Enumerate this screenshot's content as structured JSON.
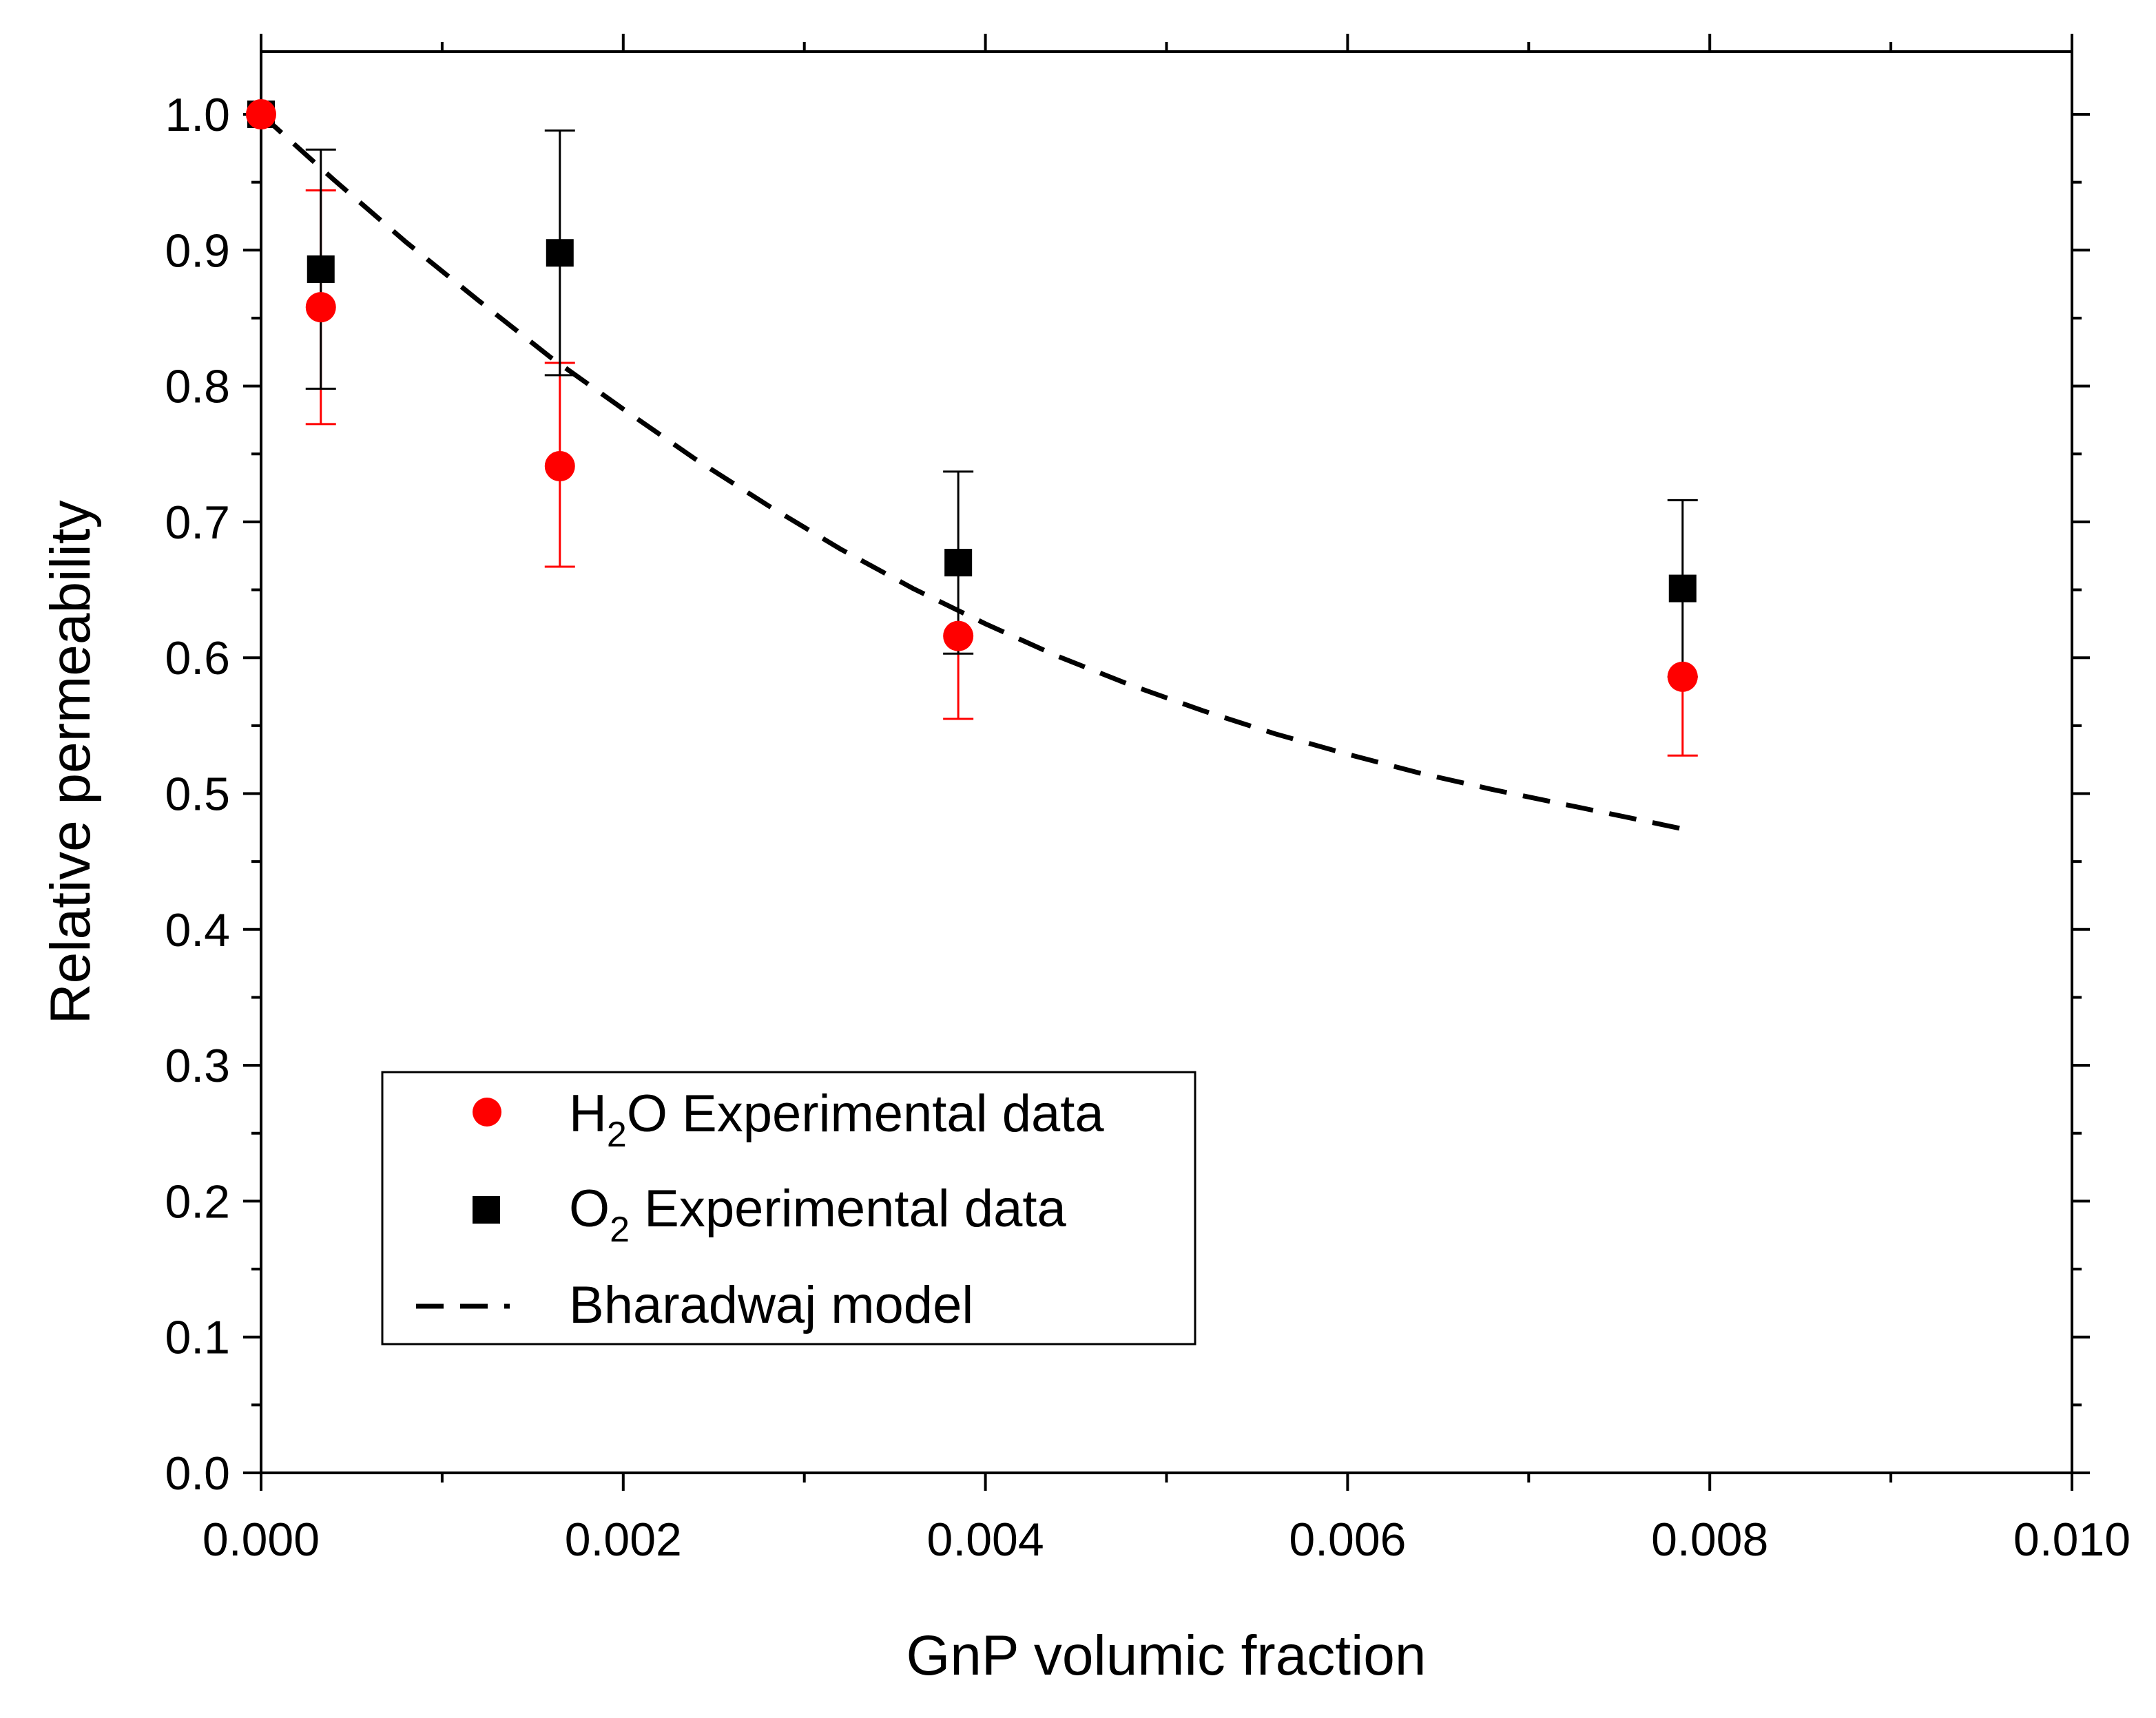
{
  "chart_data": {
    "type": "scatter",
    "title": "",
    "xlabel": "GnP volumic fraction",
    "ylabel": "Relative permeability",
    "xlim": [
      0,
      0.01
    ],
    "ylim": [
      0,
      1.05
    ],
    "grid": false,
    "x_ticks": [
      "0.000",
      "0.002",
      "0.004",
      "0.006",
      "0.008",
      "0.010"
    ],
    "y_ticks": [
      "0.0",
      "0.1",
      "0.2",
      "0.3",
      "0.4",
      "0.5",
      "0.6",
      "0.7",
      "0.8",
      "0.9",
      "1.0"
    ],
    "legend_position": "bottom-left",
    "series": [
      {
        "name": "H2O Experimental data",
        "legend": {
          "pre": "H",
          "sub": "2",
          "post": "O Experimental data"
        },
        "marker": "circle",
        "color": "#ff0000",
        "x": [
          0.0,
          0.00033,
          0.00165,
          0.00385,
          0.00785
        ],
        "y": [
          1.0,
          0.858,
          0.741,
          0.616,
          0.586
        ],
        "err_low": [
          0.0,
          0.086,
          0.074,
          0.061,
          0.058
        ],
        "err_high": [
          0.0,
          0.086,
          0.076,
          0.0,
          0.0
        ]
      },
      {
        "name": "O2 Experimental data",
        "legend": {
          "pre": "O",
          "sub": "2",
          "post": " Experimental data"
        },
        "marker": "square",
        "color": "#000000",
        "x": [
          0.0,
          0.00033,
          0.00165,
          0.00385,
          0.00785
        ],
        "y": [
          1.0,
          0.886,
          0.898,
          0.67,
          0.651
        ],
        "err_low": [
          0.0,
          0.088,
          0.09,
          0.067,
          0.065
        ],
        "err_high": [
          0.0,
          0.088,
          0.09,
          0.067,
          0.065
        ]
      },
      {
        "name": "Bharadwaj model",
        "legend": {
          "pre": "Bharadwaj model",
          "sub": "",
          "post": ""
        },
        "marker": "dashed-line",
        "color": "#000000",
        "x": [
          0.0,
          0.0004,
          0.0008,
          0.0012,
          0.0016,
          0.002,
          0.0024,
          0.0028,
          0.0032,
          0.0036,
          0.004,
          0.0044,
          0.0048,
          0.0052,
          0.0056,
          0.006,
          0.0064,
          0.0068,
          0.0072,
          0.0076,
          0.00785
        ],
        "y": [
          1.0,
          0.952,
          0.906,
          0.863,
          0.821,
          0.783,
          0.746,
          0.712,
          0.68,
          0.651,
          0.625,
          0.601,
          0.58,
          0.561,
          0.544,
          0.529,
          0.515,
          0.503,
          0.492,
          0.481,
          0.474
        ]
      }
    ]
  }
}
